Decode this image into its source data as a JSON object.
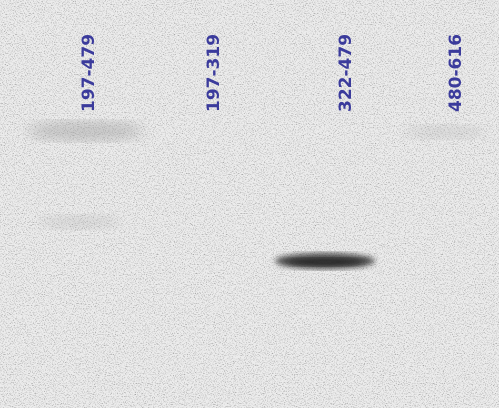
{
  "lanes": [
    {
      "label": "197-479"
    },
    {
      "label": "197-319"
    },
    {
      "label": "322-479"
    },
    {
      "label": "480-616"
    }
  ]
}
